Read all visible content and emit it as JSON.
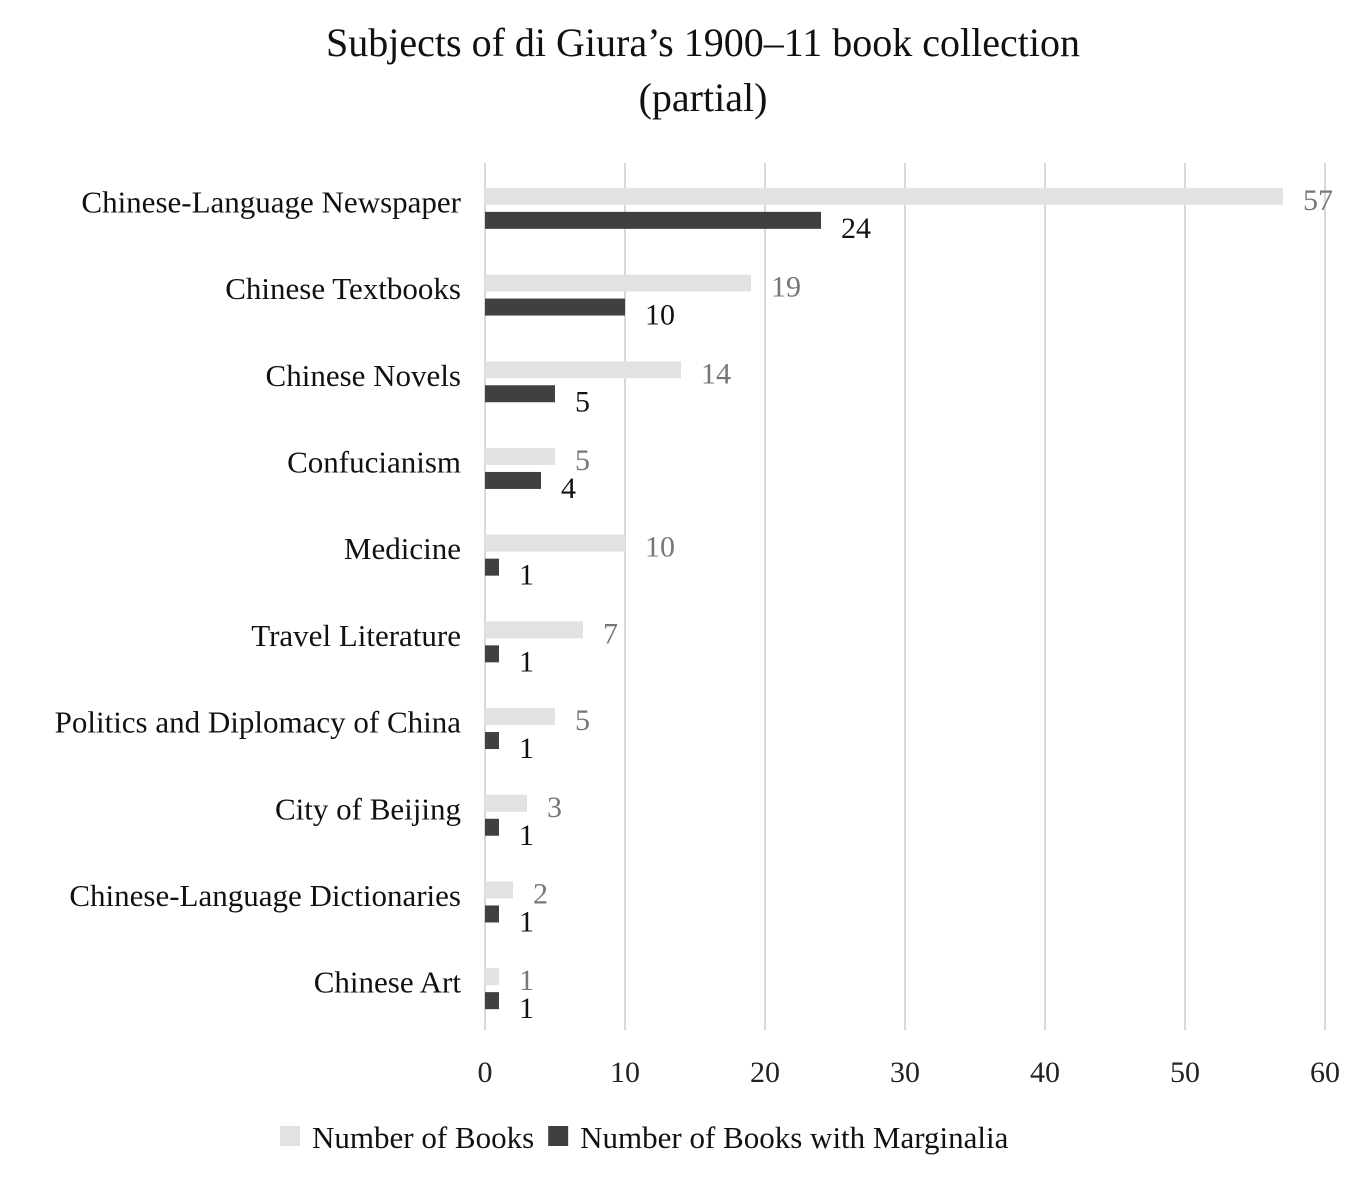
{
  "chart_data": {
    "type": "bar",
    "orientation": "horizontal",
    "title_lines": [
      "Subjects of di Giura’s 1900–11 book collection",
      "(partial)"
    ],
    "categories": [
      "Chinese-Language Newspaper",
      "Chinese Textbooks",
      "Chinese Novels",
      "Confucianism",
      "Medicine",
      "Travel Literature",
      "Politics and Diplomacy of China",
      "City of Beijing",
      "Chinese-Language Dictionaries",
      "Chinese Art"
    ],
    "series": [
      {
        "name": "Number of Books",
        "values": [
          57,
          19,
          14,
          5,
          10,
          7,
          5,
          3,
          2,
          1
        ],
        "color": "#e2e2e2",
        "label_color": "#777777"
      },
      {
        "name": "Number of Books with Marginalia",
        "values": [
          24,
          10,
          5,
          4,
          1,
          1,
          1,
          1,
          1,
          1
        ],
        "color": "#404040",
        "label_color": "#111111"
      }
    ],
    "xlim": [
      0,
      60
    ],
    "x_ticks": [
      0,
      10,
      20,
      30,
      40,
      50,
      60
    ],
    "grid": true,
    "legend_position": "bottom"
  }
}
